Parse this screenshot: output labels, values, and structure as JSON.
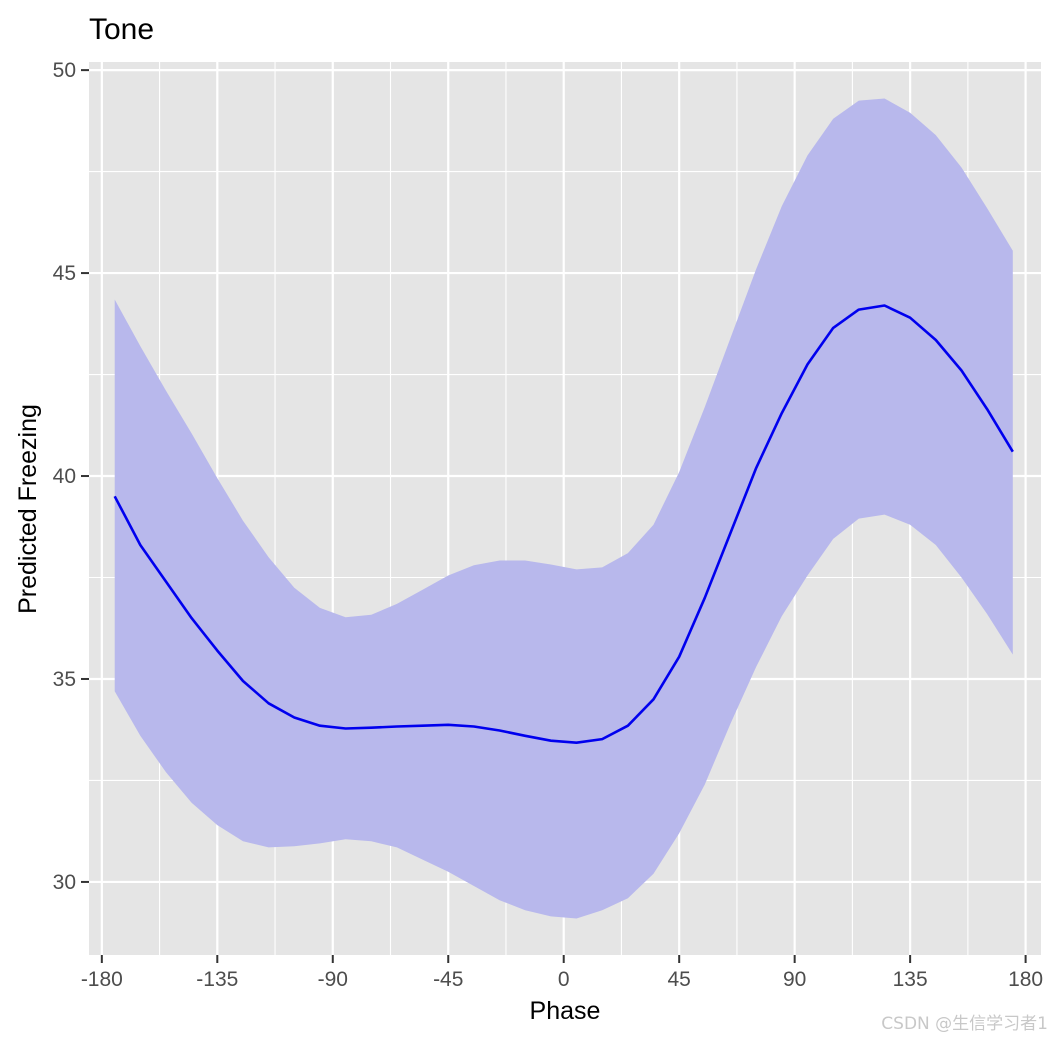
{
  "chart_data": {
    "type": "line",
    "title": "Tone",
    "xlabel": "Phase",
    "ylabel": "Predicted Freezing",
    "xlim": [
      -185,
      186
    ],
    "ylim": [
      28.2,
      50.2
    ],
    "x_ticks": [
      -180,
      -135,
      -90,
      -45,
      0,
      45,
      90,
      135,
      180
    ],
    "x_tick_labels": [
      "-180",
      "-135",
      "-90",
      "-45",
      "0",
      "45",
      "90",
      "135",
      "180"
    ],
    "y_ticks": [
      30,
      35,
      40,
      45,
      50
    ],
    "y_tick_labels": [
      "30",
      "35",
      "40",
      "45",
      "50"
    ],
    "grid": true,
    "legend": "none",
    "colors": {
      "line": "#0000ee",
      "ribbon": "#b8b8ec",
      "panel": "#e5e5e5",
      "grid": "#ffffff"
    },
    "series": [
      {
        "x": [
          -175,
          -165,
          -155,
          -145,
          -135,
          -125,
          -115,
          -105,
          -95,
          -85,
          -75,
          -65,
          -55,
          -45,
          -35,
          -25,
          -15,
          -5,
          5,
          15,
          25,
          35,
          45,
          55,
          65,
          75,
          85,
          95,
          105,
          115,
          125,
          135,
          145,
          155,
          165,
          175
        ],
        "y": [
          39.5,
          38.3,
          37.4,
          36.5,
          35.7,
          34.95,
          34.4,
          34.05,
          33.85,
          33.78,
          33.8,
          33.83,
          33.85,
          33.87,
          33.83,
          33.73,
          33.6,
          33.48,
          33.43,
          33.52,
          33.85,
          34.5,
          35.55,
          37.0,
          38.6,
          40.2,
          41.55,
          42.75,
          43.65,
          44.1,
          44.2,
          43.9,
          43.35,
          42.6,
          41.65,
          40.6
        ],
        "ymin": [
          34.7,
          33.6,
          32.7,
          31.95,
          31.4,
          31.0,
          30.85,
          30.88,
          30.95,
          31.05,
          31.0,
          30.85,
          30.55,
          30.25,
          29.9,
          29.55,
          29.3,
          29.15,
          29.1,
          29.3,
          29.6,
          30.2,
          31.2,
          32.4,
          33.9,
          35.3,
          36.55,
          37.55,
          38.45,
          38.95,
          39.05,
          38.8,
          38.3,
          37.5,
          36.6,
          35.6
        ],
        "ymax": [
          44.35,
          43.2,
          42.1,
          41.05,
          39.95,
          38.9,
          38.0,
          37.25,
          36.75,
          36.52,
          36.58,
          36.85,
          37.2,
          37.55,
          37.8,
          37.92,
          37.92,
          37.82,
          37.7,
          37.75,
          38.1,
          38.8,
          40.1,
          41.7,
          43.4,
          45.1,
          46.65,
          47.9,
          48.8,
          49.25,
          49.3,
          48.95,
          48.4,
          47.6,
          46.6,
          45.55
        ]
      }
    ]
  },
  "watermark": "CSDN @生信学习者1"
}
